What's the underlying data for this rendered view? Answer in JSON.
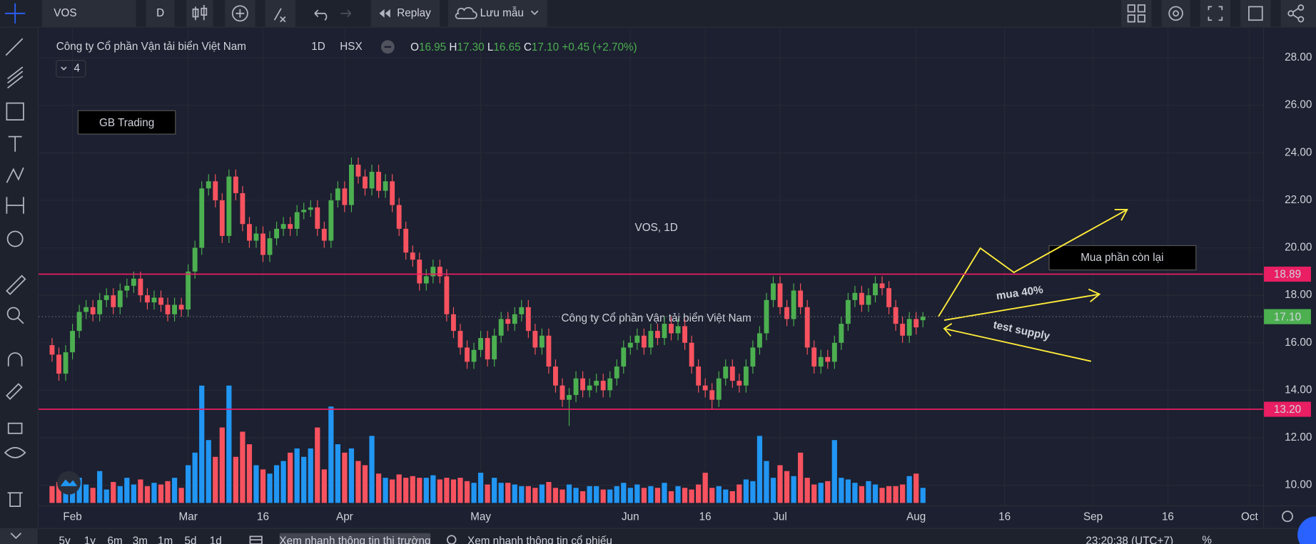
{
  "toolbar": {
    "symbol": "VOS",
    "interval": "D",
    "replay": "Replay",
    "save": "Lưu mẫu"
  },
  "legend": {
    "name": "Công ty Cổ phần Vận tải biển Việt Nam",
    "interval": "1D",
    "exchange": "HSX",
    "keys": [
      "O",
      "H",
      "L",
      "C"
    ],
    "open": "16.95",
    "high": "17.30",
    "low": "16.65",
    "close": "17.10",
    "change": "+0.45 (+2.70%)",
    "indicators": "4"
  },
  "watermark": {
    "symbol": "VOS, 1D",
    "name": "Công ty Cổ phần Vận tải biển Việt Nam"
  },
  "annotations": {
    "brand": "GB Trading",
    "buy_rest": "Mua phần còn lại",
    "buy_40": "mua 40%",
    "test": "test supply"
  },
  "footer": {
    "ranges": [
      "5y",
      "1y",
      "6m",
      "3m",
      "1m",
      "5d",
      "1d"
    ],
    "market_button": "Xem nhanh thông tin thị trường",
    "search": "Xem nhanh thông tin cổ phiếu",
    "percent": "%",
    "clock": "23:20:38 (UTC+7)"
  },
  "chart_data": {
    "type": "candlestick",
    "up_color": "#4caf50",
    "down_color": "#f7525f",
    "volume_up_color": "#2196f3",
    "volume_down_color": "#f7525f",
    "grid": true,
    "xlim": [
      -0.5,
      178
    ],
    "ylim": [
      9.15,
      29.27
    ],
    "xticks": [
      {
        "value": 3,
        "label": "Feb"
      },
      {
        "value": 20,
        "label": "Mar"
      },
      {
        "value": 31,
        "label": "16"
      },
      {
        "value": 43,
        "label": "Apr"
      },
      {
        "value": 63,
        "label": "May"
      },
      {
        "value": 85,
        "label": "Jun"
      },
      {
        "value": 96,
        "label": "16"
      },
      {
        "value": 107,
        "label": "Jul"
      },
      {
        "value": 127,
        "label": "Aug"
      },
      {
        "value": 140,
        "label": "16"
      },
      {
        "value": 153,
        "label": "Sep"
      },
      {
        "value": 164,
        "label": "16"
      },
      {
        "value": 176,
        "label": "Oct"
      }
    ],
    "yticks": [
      {
        "value": 10,
        "label": "10.00"
      },
      {
        "value": 12,
        "label": "12.00"
      },
      {
        "value": 14,
        "label": "14.00"
      },
      {
        "value": 16,
        "label": "16.00"
      },
      {
        "value": 18,
        "label": "18.00"
      },
      {
        "value": 20,
        "label": "20.00"
      },
      {
        "value": 22,
        "label": "22.00"
      },
      {
        "value": 24,
        "label": "24.00"
      },
      {
        "value": 26,
        "label": "26.00"
      },
      {
        "value": 28,
        "label": "28.00"
      }
    ],
    "levels": [
      {
        "value": 18.89,
        "label": "18.89",
        "color": "#e91e63"
      },
      {
        "value": 13.2,
        "label": "13.20",
        "color": "#e91e63"
      }
    ],
    "last_price": {
      "value": 17.1,
      "label": "17.10",
      "color": "#4caf50"
    },
    "open": [
      15.9,
      15.5,
      14.7,
      15.6,
      16.5,
      17.3,
      17.5,
      17.2,
      17.8,
      18.0,
      17.5,
      18.2,
      18.4,
      18.7,
      18.0,
      17.7,
      17.9,
      17.6,
      17.2,
      17.6,
      17.4,
      19.0,
      20.0,
      22.5,
      22.8,
      22.0,
      20.5,
      23.0,
      22.3,
      21.0,
      20.3,
      20.6,
      19.7,
      20.4,
      20.8,
      21.0,
      20.8,
      21.5,
      21.6,
      21.7,
      20.8,
      20.3,
      22.0,
      22.5,
      21.8,
      23.5,
      23.0,
      22.5,
      23.2,
      22.4,
      22.8,
      21.8,
      20.8,
      19.8,
      19.5,
      18.5,
      18.8,
      19.2,
      18.8,
      17.2,
      16.5,
      15.8,
      15.2,
      15.7,
      16.2,
      15.3,
      16.3,
      17.0,
      16.8,
      17.2,
      17.5,
      16.5,
      15.8,
      16.3,
      15.0,
      14.2,
      13.6,
      13.8,
      14.5,
      14.0,
      14.2,
      14.4,
      14.0,
      14.5,
      15.0,
      15.8,
      16.0,
      16.3,
      15.8,
      16.5,
      16.2,
      16.8,
      16.4,
      16.7,
      16.0,
      15.0,
      14.2,
      14.0,
      13.6,
      14.5,
      15.0,
      14.4,
      14.2,
      15.0,
      15.8,
      16.4,
      17.8,
      18.5,
      17.5,
      17.0,
      18.2,
      17.5,
      15.8,
      15.0,
      15.4,
      15.2,
      16.0,
      16.8,
      17.8,
      18.1,
      17.6,
      18.0,
      18.5,
      18.3,
      17.5,
      16.8,
      16.3,
      17.0,
      16.95
    ],
    "high": [
      16.2,
      15.8,
      15.9,
      16.8,
      17.6,
      17.8,
      17.8,
      18.1,
      18.3,
      18.3,
      18.5,
      18.7,
      19.0,
      19.0,
      18.3,
      18.2,
      18.2,
      17.9,
      17.9,
      17.9,
      19.3,
      20.3,
      22.8,
      23.1,
      23.1,
      22.3,
      23.3,
      23.3,
      22.6,
      21.3,
      20.9,
      20.9,
      20.7,
      21.1,
      21.3,
      21.3,
      21.8,
      21.9,
      22.0,
      22.0,
      21.1,
      22.3,
      22.8,
      22.8,
      23.8,
      23.8,
      23.3,
      23.5,
      23.5,
      23.1,
      23.1,
      22.1,
      21.1,
      20.1,
      19.8,
      19.1,
      19.5,
      19.5,
      19.1,
      17.5,
      16.8,
      16.1,
      16.0,
      16.5,
      16.5,
      16.6,
      17.3,
      17.3,
      17.5,
      17.8,
      17.8,
      16.8,
      16.6,
      16.6,
      15.3,
      14.5,
      14.1,
      14.8,
      14.8,
      14.5,
      14.7,
      14.7,
      14.8,
      15.3,
      16.1,
      16.3,
      16.6,
      16.6,
      16.8,
      16.8,
      17.1,
      17.1,
      17.0,
      17.0,
      16.3,
      15.3,
      14.5,
      14.3,
      14.8,
      15.3,
      15.3,
      14.7,
      15.3,
      16.1,
      16.7,
      18.1,
      18.8,
      18.8,
      17.8,
      18.5,
      18.5,
      17.8,
      16.1,
      15.7,
      15.7,
      16.3,
      17.1,
      18.1,
      18.4,
      18.4,
      18.3,
      18.8,
      18.8,
      18.6,
      17.8,
      17.1,
      17.3,
      17.3,
      17.3
    ],
    "low": [
      15.2,
      14.4,
      14.4,
      15.3,
      16.2,
      17.0,
      16.9,
      16.9,
      17.5,
      17.2,
      17.2,
      17.9,
      18.1,
      17.7,
      17.4,
      17.4,
      17.3,
      16.9,
      16.9,
      17.1,
      17.1,
      18.7,
      19.7,
      22.2,
      21.7,
      20.2,
      20.2,
      22.0,
      20.7,
      20.0,
      20.0,
      19.4,
      19.4,
      20.1,
      20.5,
      20.5,
      20.5,
      21.2,
      21.3,
      20.5,
      20.0,
      20.0,
      21.7,
      21.5,
      21.5,
      22.7,
      22.2,
      22.2,
      22.1,
      22.1,
      21.5,
      20.5,
      19.5,
      19.2,
      18.2,
      18.2,
      18.5,
      18.5,
      16.9,
      16.2,
      15.5,
      14.9,
      14.9,
      15.4,
      15.0,
      15.0,
      16.0,
      16.5,
      16.5,
      16.9,
      16.2,
      15.5,
      15.5,
      14.7,
      13.9,
      13.3,
      12.5,
      13.5,
      13.7,
      13.7,
      13.9,
      13.7,
      13.7,
      14.2,
      14.7,
      15.5,
      15.7,
      15.5,
      15.5,
      15.9,
      15.9,
      16.1,
      16.1,
      15.7,
      14.7,
      13.9,
      13.7,
      13.2,
      13.3,
      14.2,
      14.1,
      13.9,
      13.9,
      14.7,
      15.5,
      16.1,
      17.5,
      17.2,
      16.7,
      16.7,
      17.2,
      15.5,
      14.7,
      14.7,
      14.9,
      14.9,
      15.7,
      16.5,
      17.5,
      17.3,
      17.3,
      17.7,
      18.0,
      17.2,
      16.5,
      16.0,
      16.0,
      16.35,
      16.65
    ],
    "close": [
      15.5,
      14.7,
      15.6,
      16.5,
      17.3,
      17.5,
      17.2,
      17.8,
      18.0,
      17.5,
      18.2,
      18.4,
      18.7,
      18.0,
      17.7,
      17.9,
      17.6,
      17.2,
      17.6,
      17.4,
      19.0,
      20.0,
      22.5,
      22.8,
      22.0,
      20.5,
      23.0,
      22.3,
      21.0,
      20.3,
      20.6,
      19.7,
      20.4,
      20.8,
      21.0,
      20.8,
      21.5,
      21.6,
      21.7,
      20.8,
      20.3,
      22.0,
      22.5,
      21.8,
      23.5,
      23.0,
      22.5,
      23.2,
      22.4,
      22.8,
      21.8,
      20.8,
      19.8,
      19.5,
      18.5,
      18.8,
      19.2,
      18.8,
      17.2,
      16.5,
      15.8,
      15.2,
      15.7,
      16.2,
      15.3,
      16.3,
      17.0,
      16.8,
      17.2,
      17.5,
      16.5,
      15.8,
      16.3,
      15.0,
      14.2,
      13.6,
      13.8,
      14.5,
      14.0,
      14.2,
      14.4,
      14.0,
      14.5,
      15.0,
      15.8,
      16.0,
      16.3,
      15.8,
      16.5,
      16.2,
      16.8,
      16.4,
      16.7,
      16.0,
      15.0,
      14.2,
      14.0,
      13.6,
      14.5,
      15.0,
      14.4,
      14.2,
      15.0,
      15.8,
      16.4,
      17.8,
      18.5,
      17.5,
      17.0,
      18.2,
      17.5,
      15.8,
      15.0,
      15.4,
      15.2,
      16.0,
      16.8,
      17.8,
      18.1,
      17.6,
      18.0,
      18.5,
      18.3,
      17.5,
      16.8,
      16.3,
      17.0,
      16.65,
      17.1
    ],
    "volume": [
      20,
      25,
      22,
      18,
      30,
      22,
      18,
      38,
      16,
      25,
      20,
      30,
      22,
      28,
      20,
      24,
      22,
      26,
      30,
      18,
      45,
      60,
      140,
      75,
      55,
      90,
      140,
      55,
      85,
      70,
      45,
      40,
      35,
      45,
      50,
      60,
      65,
      55,
      65,
      90,
      40,
      115,
      70,
      60,
      65,
      50,
      45,
      80,
      35,
      30,
      28,
      34,
      30,
      32,
      30,
      30,
      33,
      28,
      30,
      28,
      30,
      26,
      24,
      36,
      22,
      30,
      24,
      24,
      22,
      20,
      20,
      18,
      22,
      25,
      18,
      16,
      22,
      18,
      14,
      20,
      20,
      16,
      16,
      20,
      24,
      18,
      22,
      18,
      20,
      18,
      24,
      14,
      20,
      18,
      16,
      22,
      36,
      18,
      20,
      16,
      14,
      22,
      28,
      26,
      80,
      50,
      30,
      45,
      38,
      32,
      60,
      30,
      22,
      24,
      26,
      75,
      30,
      28,
      24,
      20,
      26,
      22,
      18,
      20,
      20,
      22,
      32,
      35,
      18
    ]
  }
}
